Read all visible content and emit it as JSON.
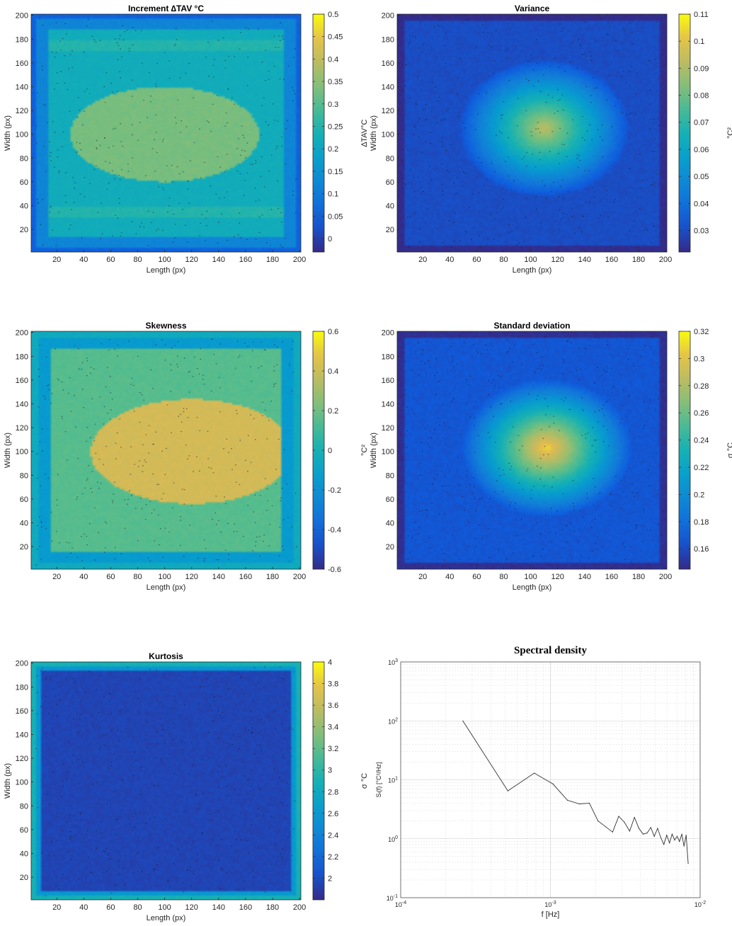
{
  "chart_data": [
    {
      "type": "heatmap",
      "title": "Increment ∆TAV °C",
      "xlabel": "Length (px)",
      "ylabel": "Width (px)",
      "xlim": [
        1,
        201
      ],
      "ylim": [
        1,
        201
      ],
      "xticks": [
        20,
        40,
        60,
        80,
        100,
        120,
        140,
        160,
        180,
        200
      ],
      "yticks": [
        20,
        40,
        60,
        80,
        100,
        120,
        140,
        160,
        180,
        200
      ],
      "colorbar": {
        "label": "∆TAV°C",
        "range": [
          -0.03,
          0.5
        ],
        "ticks": [
          "0",
          "0.05",
          "0.1",
          "0.15",
          "0.2",
          "0.25",
          "0.3",
          "0.35",
          "0.4",
          "0.45",
          "0.5"
        ],
        "tick_values": [
          0,
          0.05,
          0.1,
          0.15,
          0.2,
          0.25,
          0.3,
          0.35,
          0.4,
          0.45,
          0.5
        ]
      },
      "field": {
        "pattern": "increment",
        "center": [
          100,
          100
        ],
        "bg": 0.22,
        "peak": 0.33,
        "edge": 0.05
      }
    },
    {
      "type": "heatmap",
      "title": "Variance",
      "xlabel": "Length (px)",
      "ylabel": "Width (px)",
      "xlim": [
        1,
        201
      ],
      "ylim": [
        1,
        201
      ],
      "xticks": [
        20,
        40,
        60,
        80,
        100,
        120,
        140,
        160,
        180,
        200
      ],
      "yticks": [
        20,
        40,
        60,
        80,
        100,
        120,
        140,
        160,
        180,
        200
      ],
      "colorbar": {
        "label": "°C²",
        "range": [
          0.022,
          0.11
        ],
        "ticks": [
          "0.03",
          "0.04",
          "0.05",
          "0.06",
          "0.07",
          "0.08",
          "0.09",
          "0.1",
          "0.11"
        ],
        "tick_values": [
          0.03,
          0.04,
          0.05,
          0.06,
          0.07,
          0.08,
          0.09,
          0.1,
          0.11
        ]
      },
      "field": {
        "pattern": "ellipse",
        "center": [
          110,
          105
        ],
        "rx": 120,
        "ry": 110,
        "low": 0.03,
        "high": 0.092
      }
    },
    {
      "type": "heatmap",
      "title": "Skewness",
      "xlabel": "Length (px)",
      "ylabel": "Width (px)",
      "xlim": [
        1,
        201
      ],
      "ylim": [
        1,
        201
      ],
      "xticks": [
        20,
        40,
        60,
        80,
        100,
        120,
        140,
        160,
        180,
        200
      ],
      "yticks": [
        20,
        40,
        60,
        80,
        100,
        120,
        140,
        160,
        180,
        200
      ],
      "colorbar": {
        "label": "°C²",
        "range": [
          -0.6,
          0.6
        ],
        "ticks": [
          "-0.6",
          "-0.4",
          "-0.2",
          "0",
          "0.2",
          "0.4",
          "0.6"
        ],
        "tick_values": [
          -0.6,
          -0.4,
          -0.2,
          0,
          0.2,
          0.4,
          0.6
        ]
      },
      "field": {
        "pattern": "plateau",
        "center": [
          120,
          100
        ],
        "rx": 75,
        "ry": 44,
        "low": 0.15,
        "high": 0.42,
        "edge": -0.15
      }
    },
    {
      "type": "heatmap",
      "title": "Standard deviation",
      "xlabel": "Length (px)",
      "ylabel": "Width (px)",
      "xlim": [
        1,
        201
      ],
      "ylim": [
        1,
        201
      ],
      "xticks": [
        20,
        40,
        60,
        80,
        100,
        120,
        140,
        160,
        180,
        200
      ],
      "yticks": [
        20,
        40,
        60,
        80,
        100,
        120,
        140,
        160,
        180,
        200
      ],
      "colorbar": {
        "label": "σ °C",
        "range": [
          0.145,
          0.32
        ],
        "ticks": [
          "0.16",
          "0.18",
          "0.2",
          "0.22",
          "0.24",
          "0.26",
          "0.28",
          "0.3",
          "0.32"
        ],
        "tick_values": [
          0.16,
          0.18,
          0.2,
          0.22,
          0.24,
          0.26,
          0.28,
          0.3,
          0.32
        ]
      },
      "field": {
        "pattern": "ellipse",
        "center": [
          112,
          103
        ],
        "rx": 120,
        "ry": 110,
        "low": 0.165,
        "high": 0.31
      }
    },
    {
      "type": "heatmap",
      "title": "Kurtosis",
      "xlabel": "Length (px)",
      "ylabel": "Width (px)",
      "xlim": [
        1,
        201
      ],
      "ylim": [
        1,
        201
      ],
      "xticks": [
        20,
        40,
        60,
        80,
        100,
        120,
        140,
        160,
        180,
        200
      ],
      "yticks": [
        20,
        40,
        60,
        80,
        100,
        120,
        140,
        160,
        180,
        200
      ],
      "colorbar": {
        "label": "σ °C",
        "range": [
          1.8,
          4.0
        ],
        "ticks": [
          "2",
          "2.2",
          "2.4",
          "2.6",
          "2.8",
          "3",
          "3.2",
          "3.4",
          "3.6",
          "3.8",
          "4"
        ],
        "tick_values": [
          2,
          2.2,
          2.4,
          2.6,
          2.8,
          3,
          3.2,
          3.4,
          3.6,
          3.8,
          4
        ]
      },
      "field": {
        "pattern": "kurtosis",
        "low": 1.95,
        "edge": 2.6
      }
    },
    {
      "type": "line",
      "title": "Spectral density",
      "xlabel": "f [Hz]",
      "ylabel": "Sₗ(f) [°C²/Hz]",
      "xscale": "log",
      "yscale": "log",
      "xlim": [
        0.0001,
        0.01
      ],
      "ylim": [
        0.1,
        1000
      ],
      "xticks": [
        {
          "base": "10",
          "exp": "-4"
        },
        {
          "base": "10",
          "exp": "-3"
        },
        {
          "base": "10",
          "exp": "-2"
        }
      ],
      "yticks": [
        {
          "base": "10",
          "exp": "-1"
        },
        {
          "base": "10",
          "exp": "0"
        },
        {
          "base": "10",
          "exp": "1"
        },
        {
          "base": "10",
          "exp": "2"
        },
        {
          "base": "10",
          "exp": "3"
        }
      ],
      "grid": true,
      "series": [
        {
          "x": [
            0.00026,
            0.00052,
            0.00078,
            0.00104,
            0.0013,
            0.00156,
            0.00182,
            0.00208,
            0.00234,
            0.0026,
            0.00286,
            0.00312,
            0.00338,
            0.00364,
            0.0039,
            0.00416,
            0.00442,
            0.00468,
            0.00494,
            0.0052,
            0.00546,
            0.00572,
            0.00598,
            0.00624,
            0.0065,
            0.00676,
            0.00702,
            0.00728,
            0.00754,
            0.0078,
            0.00806,
            0.00832
          ],
          "y": [
            100,
            6.5,
            13,
            8.5,
            4.5,
            3.9,
            4.0,
            2.0,
            1.6,
            1.3,
            2.4,
            1.9,
            1.35,
            2.3,
            1.5,
            1.2,
            1.25,
            1.55,
            1.1,
            1.5,
            1.05,
            0.8,
            1.15,
            0.85,
            1.2,
            0.95,
            1.1,
            0.9,
            1.2,
            0.75,
            1.15,
            0.38
          ]
        }
      ]
    }
  ]
}
